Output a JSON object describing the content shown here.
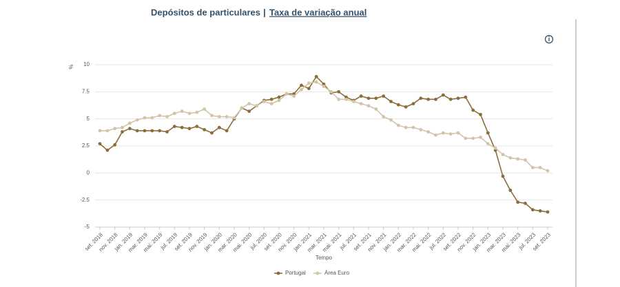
{
  "chart_data": {
    "type": "line",
    "title": "Depósitos de particulares",
    "title_separator": "|",
    "title_link": "Taxa de variação anual",
    "y_label": "%",
    "x_label": "Tempo",
    "categories": [
      "set. 2018",
      null,
      "nov. 2018",
      null,
      "jan. 2019",
      null,
      "mar. 2019",
      null,
      "mai. 2019",
      null,
      "jul. 2019",
      null,
      "set. 2019",
      null,
      "nov. 2019",
      null,
      "jan. 2020",
      null,
      "mar. 2020",
      null,
      "mai. 2020",
      null,
      "jul. 2020",
      null,
      "set. 2020",
      null,
      "nov. 2020",
      null,
      "jan. 2021",
      null,
      "mar. 2021",
      null,
      "mai. 2021",
      null,
      "jul. 2021",
      null,
      "set. 2021",
      null,
      "nov. 2021",
      null,
      "jan. 2022",
      null,
      "mar. 2022",
      null,
      "mai. 2022",
      null,
      "jul. 2022",
      null,
      "set. 2022",
      null,
      "nov. 2022",
      null,
      "jan. 2023",
      null,
      "mar. 2023",
      null,
      "mai. 2023",
      null,
      "jul. 2023",
      null,
      "set. 2023"
    ],
    "series": [
      {
        "name": "Portugal",
        "color": "#8c6d3a",
        "values": [
          2.7,
          2.1,
          2.6,
          3.8,
          4.1,
          3.9,
          3.9,
          3.9,
          3.9,
          3.8,
          4.3,
          4.2,
          4.1,
          4.3,
          4.0,
          3.7,
          4.2,
          3.9,
          5.0,
          6.0,
          5.7,
          6.2,
          6.7,
          6.8,
          7.0,
          7.3,
          7.3,
          8.1,
          7.8,
          8.9,
          8.2,
          7.4,
          7.5,
          7.0,
          6.7,
          7.1,
          6.9,
          6.9,
          7.1,
          6.6,
          6.3,
          6.1,
          6.4,
          6.9,
          6.8,
          6.8,
          7.2,
          6.8,
          6.9,
          7.0,
          5.8,
          5.4,
          3.7,
          2.1,
          -0.3,
          -1.6,
          -2.7,
          -2.8,
          -3.4,
          -3.5,
          -3.6
        ]
      },
      {
        "name": "Área Euro",
        "color": "#d2c4a6",
        "values": [
          3.9,
          3.9,
          4.1,
          4.2,
          4.6,
          4.9,
          5.1,
          5.1,
          5.3,
          5.2,
          5.5,
          5.7,
          5.5,
          5.6,
          5.9,
          5.3,
          5.2,
          5.2,
          5.1,
          6.0,
          6.4,
          6.2,
          6.6,
          6.4,
          6.7,
          7.3,
          7.1,
          7.7,
          8.3,
          8.4,
          8.0,
          7.5,
          6.8,
          6.8,
          6.6,
          6.4,
          6.2,
          5.9,
          5.2,
          4.9,
          4.4,
          4.2,
          4.2,
          4.0,
          3.8,
          3.5,
          3.7,
          3.6,
          3.7,
          3.2,
          3.2,
          3.3,
          2.7,
          2.3,
          1.7,
          1.4,
          1.3,
          1.2,
          0.5,
          0.5,
          0.2
        ]
      }
    ],
    "ylim": [
      -5,
      10
    ],
    "yticks": [
      -5,
      -2.5,
      0,
      2.5,
      5,
      7.5,
      10
    ],
    "grid": true,
    "legend": "bottom"
  }
}
